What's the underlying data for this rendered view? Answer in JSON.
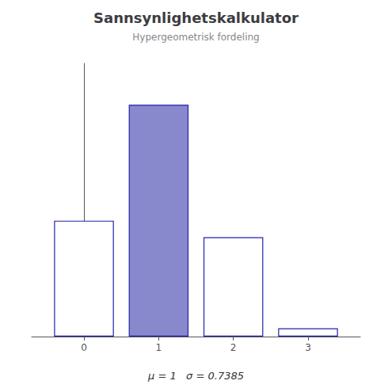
{
  "chart_data": {
    "type": "bar",
    "title": "Sannsynlighetskalkulator",
    "subtitle": "Hypergeometrisk fordeling",
    "x": [
      0,
      1,
      2,
      3
    ],
    "values": [
      0.2545,
      0.5091,
      0.2182,
      0.0182
    ],
    "color": "#2222aa",
    "colors": [
      "#ffffff",
      "#8888cc",
      "#ffffff",
      "#ffffff"
    ],
    "xlim": [
      -0.7,
      3.7
    ],
    "xticks": [
      0,
      1,
      2,
      3
    ],
    "ylim": [
      0,
      0.6
    ],
    "annotations": [
      "μ = 1   σ = 0.7385"
    ],
    "tick_labels": "x",
    "grid": false
  }
}
